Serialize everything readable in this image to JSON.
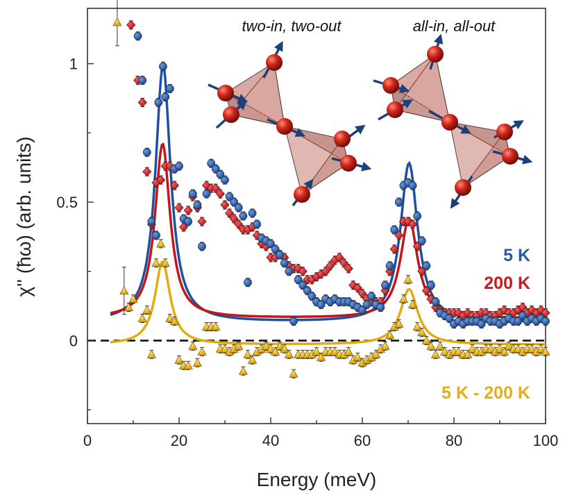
{
  "chart_data": {
    "type": "scatter",
    "title": "",
    "xlabel": "Energy (meV)",
    "ylabel": "χ'' (ħω) (arb. units)",
    "xlim": [
      0,
      100
    ],
    "ylim": [
      -0.3,
      1.2
    ],
    "xticks": [
      0,
      20,
      40,
      60,
      80,
      100
    ],
    "xtick_labels": [
      "0",
      "20",
      "40",
      "60",
      "80",
      "100"
    ],
    "yticks": [
      0,
      0.5,
      1
    ],
    "ytick_labels": [
      "0",
      "0.5",
      "1"
    ],
    "zero_line": "dashed",
    "annotations": [
      "two-in, two-out",
      "all-in, all-out"
    ],
    "legend_position": "right",
    "series": [
      {
        "name": "5 K",
        "color": "#2a5aa8",
        "line_color": "#1f4fa0",
        "marker": "circle",
        "fit_lorentz": {
          "baseline": 0.065,
          "peaks": [
            {
              "center": 16.5,
              "amp": 0.93,
              "width": 2.0
            },
            {
              "center": 70.2,
              "amp": 0.575,
              "width": 2.3
            }
          ]
        },
        "points": [
          [
            11,
            1.1
          ],
          [
            12,
            0.94
          ],
          [
            13,
            0.68
          ],
          [
            14,
            0.43
          ],
          [
            15,
            0.38
          ],
          [
            15.5,
            0.86
          ],
          [
            16.5,
            0.99
          ],
          [
            17,
            0.88
          ],
          [
            18,
            0.91
          ],
          [
            19,
            0.62
          ],
          [
            20,
            0.63
          ],
          [
            21,
            0.44
          ],
          [
            22,
            0.43
          ],
          [
            23,
            0.53
          ],
          [
            24,
            0.49
          ],
          [
            25,
            0.34
          ],
          [
            26,
            0.53
          ],
          [
            27,
            0.64
          ],
          [
            28,
            0.62
          ],
          [
            29,
            0.6
          ],
          [
            30,
            0.58
          ],
          [
            31,
            0.52
          ],
          [
            32,
            0.5
          ],
          [
            33,
            0.48
          ],
          [
            34,
            0.45
          ],
          [
            35,
            0.21
          ],
          [
            36,
            0.46
          ],
          [
            37,
            0.42
          ],
          [
            38,
            0.37
          ],
          [
            39,
            0.36
          ],
          [
            40,
            0.35
          ],
          [
            41,
            0.33
          ],
          [
            42,
            0.31
          ],
          [
            43,
            0.28
          ],
          [
            44,
            0.25
          ],
          [
            45,
            0.07
          ],
          [
            46,
            0.22
          ],
          [
            47,
            0.2
          ],
          [
            48,
            0.18
          ],
          [
            49,
            0.16
          ],
          [
            50,
            0.14
          ],
          [
            51,
            0.13
          ],
          [
            52,
            0.15
          ],
          [
            53,
            0.14
          ],
          [
            54,
            0.15
          ],
          [
            55,
            0.14
          ],
          [
            56,
            0.14
          ],
          [
            57,
            0.14
          ],
          [
            58,
            0.13
          ],
          [
            59,
            0.12
          ],
          [
            60,
            0.11
          ],
          [
            61,
            0.13
          ],
          [
            62,
            0.16
          ],
          [
            63,
            0.13
          ],
          [
            64,
            0.12
          ],
          [
            65,
            0.2
          ],
          [
            66,
            0.27
          ],
          [
            67,
            0.4
          ],
          [
            68,
            0.5
          ],
          [
            69,
            0.56
          ],
          [
            70,
            0.57
          ],
          [
            71,
            0.56
          ],
          [
            72,
            0.45
          ],
          [
            73,
            0.36
          ],
          [
            74,
            0.27
          ],
          [
            75,
            0.2
          ],
          [
            76,
            0.14
          ],
          [
            77,
            0.1
          ],
          [
            78,
            0.09
          ],
          [
            79,
            0.08
          ],
          [
            80,
            0.06
          ],
          [
            81,
            0.07
          ],
          [
            82,
            0.06
          ],
          [
            83,
            0.07
          ],
          [
            84,
            0.07
          ],
          [
            85,
            0.07
          ],
          [
            86,
            0.06
          ],
          [
            87,
            0.08
          ],
          [
            88,
            0.07
          ],
          [
            89,
            0.07
          ],
          [
            90,
            0.06
          ],
          [
            91,
            0.07
          ],
          [
            92,
            0.08
          ],
          [
            93,
            0.07
          ],
          [
            94,
            0.07
          ],
          [
            95,
            0.09
          ],
          [
            96,
            0.07
          ],
          [
            97,
            0.08
          ],
          [
            98,
            0.07
          ],
          [
            99,
            0.08
          ],
          [
            100,
            0.07
          ]
        ]
      },
      {
        "name": "200 K",
        "color": "#c81a1c",
        "line_color": "#c3161b",
        "marker": "diamond",
        "fit_lorentz": {
          "baseline": 0.08,
          "peaks": [
            {
              "center": 16.4,
              "amp": 0.63,
              "width": 2.0
            },
            {
              "center": 70.2,
              "amp": 0.36,
              "width": 2.3
            }
          ]
        },
        "points": [
          [
            9.5,
            1.14
          ],
          [
            11,
            0.94
          ],
          [
            12,
            0.86
          ],
          [
            13,
            0.61
          ],
          [
            14,
            0.42
          ],
          [
            15,
            0.57
          ],
          [
            16,
            0.58
          ],
          [
            17,
            0.63
          ],
          [
            18,
            0.63
          ],
          [
            19,
            0.56
          ],
          [
            20,
            0.48
          ],
          [
            21,
            0.41
          ],
          [
            22,
            0.47
          ],
          [
            23,
            0.52
          ],
          [
            24,
            0.48
          ],
          [
            25,
            0.43
          ],
          [
            26,
            0.56
          ],
          [
            27,
            0.55
          ],
          [
            28,
            0.55
          ],
          [
            29,
            0.53
          ],
          [
            30,
            0.49
          ],
          [
            31,
            0.46
          ],
          [
            32,
            0.44
          ],
          [
            33,
            0.42
          ],
          [
            34,
            0.4
          ],
          [
            35,
            0.4
          ],
          [
            36,
            0.41
          ],
          [
            37,
            0.38
          ],
          [
            38,
            0.35
          ],
          [
            39,
            0.34
          ],
          [
            40,
            0.3
          ],
          [
            41,
            0.3
          ],
          [
            42,
            0.31
          ],
          [
            43,
            0.3
          ],
          [
            44,
            0.27
          ],
          [
            45,
            0.26
          ],
          [
            46,
            0.26
          ],
          [
            47,
            0.25
          ],
          [
            48,
            0.22
          ],
          [
            49,
            0.22
          ],
          [
            50,
            0.23
          ],
          [
            51,
            0.24
          ],
          [
            52,
            0.25
          ],
          [
            53,
            0.27
          ],
          [
            54,
            0.29
          ],
          [
            55,
            0.3
          ],
          [
            56,
            0.28
          ],
          [
            57,
            0.26
          ],
          [
            58,
            0.2
          ],
          [
            59,
            0.19
          ],
          [
            60,
            0.17
          ],
          [
            61,
            0.15
          ],
          [
            62,
            0.14
          ],
          [
            63,
            0.14
          ],
          [
            64,
            0.14
          ],
          [
            65,
            0.18
          ],
          [
            66,
            0.25
          ],
          [
            67,
            0.33
          ],
          [
            68,
            0.38
          ],
          [
            69,
            0.43
          ],
          [
            70,
            0.43
          ],
          [
            71,
            0.42
          ],
          [
            72,
            0.34
          ],
          [
            73,
            0.25
          ],
          [
            74,
            0.18
          ],
          [
            75,
            0.15
          ],
          [
            76,
            0.12
          ],
          [
            77,
            0.11
          ],
          [
            78,
            0.1
          ],
          [
            79,
            0.1
          ],
          [
            80,
            0.1
          ],
          [
            81,
            0.1
          ],
          [
            82,
            0.09
          ],
          [
            83,
            0.1
          ],
          [
            84,
            0.09
          ],
          [
            85,
            0.09
          ],
          [
            86,
            0.1
          ],
          [
            87,
            0.1
          ],
          [
            88,
            0.09
          ],
          [
            89,
            0.09
          ],
          [
            90,
            0.1
          ],
          [
            91,
            0.11
          ],
          [
            92,
            0.1
          ],
          [
            93,
            0.1
          ],
          [
            94,
            0.11
          ],
          [
            95,
            0.12
          ],
          [
            96,
            0.1
          ],
          [
            97,
            0.11
          ],
          [
            98,
            0.1
          ],
          [
            99,
            0.11
          ],
          [
            100,
            0.1
          ]
        ]
      },
      {
        "name": "5 K - 200 K",
        "color": "#e2ae1a",
        "line_color": "#e2ab14",
        "marker": "triangle",
        "fit_lorentz": {
          "baseline": -0.015,
          "peaks": [
            {
              "center": 16.4,
              "amp": 0.3,
              "width": 2.0
            },
            {
              "center": 70.2,
              "amp": 0.2,
              "width": 2.3
            }
          ]
        },
        "points": [
          [
            6.5,
            1.15
          ],
          [
            8,
            0.18
          ],
          [
            9,
            0.12
          ],
          [
            10,
            0.15
          ],
          [
            12,
            0.08
          ],
          [
            13,
            0.11
          ],
          [
            14,
            -0.05
          ],
          [
            15,
            0.28
          ],
          [
            16,
            0.35
          ],
          [
            17,
            0.28
          ],
          [
            18,
            0.08
          ],
          [
            19,
            0.07
          ],
          [
            20,
            -0.07
          ],
          [
            21,
            -0.09
          ],
          [
            22,
            -0.09
          ],
          [
            23,
            -0.02
          ],
          [
            24,
            -0.08
          ],
          [
            25,
            -0.04
          ],
          [
            26,
            0.05
          ],
          [
            27,
            0.05
          ],
          [
            28,
            0.05
          ],
          [
            29,
            -0.03
          ],
          [
            30,
            -0.03
          ],
          [
            31,
            -0.04
          ],
          [
            32,
            -0.03
          ],
          [
            33,
            -0.02
          ],
          [
            34,
            -0.11
          ],
          [
            35,
            -0.05
          ],
          [
            36,
            -0.07
          ],
          [
            37,
            -0.04
          ],
          [
            38,
            -0.03
          ],
          [
            39,
            -0.02
          ],
          [
            40,
            -0.03
          ],
          [
            41,
            -0.04
          ],
          [
            42,
            -0.02
          ],
          [
            43,
            -0.03
          ],
          [
            44,
            -0.05
          ],
          [
            45,
            -0.12
          ],
          [
            46,
            -0.05
          ],
          [
            47,
            -0.05
          ],
          [
            48,
            -0.05
          ],
          [
            49,
            -0.05
          ],
          [
            50,
            -0.04
          ],
          [
            51,
            -0.06
          ],
          [
            52,
            -0.04
          ],
          [
            53,
            -0.04
          ],
          [
            54,
            -0.04
          ],
          [
            55,
            -0.05
          ],
          [
            56,
            -0.05
          ],
          [
            57,
            -0.04
          ],
          [
            58,
            -0.07
          ],
          [
            59,
            -0.06
          ],
          [
            60,
            -0.08
          ],
          [
            61,
            -0.07
          ],
          [
            62,
            -0.06
          ],
          [
            63,
            -0.05
          ],
          [
            64,
            -0.03
          ],
          [
            65,
            -0.02
          ],
          [
            66,
            0.02
          ],
          [
            67,
            0.05
          ],
          [
            68,
            0.06
          ],
          [
            69,
            0.15
          ],
          [
            70,
            0.22
          ],
          [
            71,
            0.13
          ],
          [
            72,
            0.05
          ],
          [
            73,
            0.03
          ],
          [
            74,
            0.0
          ],
          [
            75,
            -0.02
          ],
          [
            76,
            -0.05
          ],
          [
            77,
            -0.02
          ],
          [
            78,
            -0.04
          ],
          [
            79,
            -0.05
          ],
          [
            80,
            -0.04
          ],
          [
            81,
            -0.04
          ],
          [
            82,
            -0.05
          ],
          [
            83,
            -0.05
          ],
          [
            84,
            -0.03
          ],
          [
            85,
            -0.04
          ],
          [
            86,
            -0.04
          ],
          [
            87,
            -0.03
          ],
          [
            88,
            -0.03
          ],
          [
            89,
            -0.04
          ],
          [
            90,
            -0.03
          ],
          [
            91,
            -0.04
          ],
          [
            92,
            -0.02
          ],
          [
            93,
            -0.03
          ],
          [
            94,
            -0.03
          ],
          [
            95,
            -0.04
          ],
          [
            96,
            -0.03
          ],
          [
            97,
            -0.03
          ],
          [
            98,
            -0.04
          ],
          [
            99,
            -0.03
          ],
          [
            100,
            -0.04
          ]
        ]
      }
    ]
  }
}
